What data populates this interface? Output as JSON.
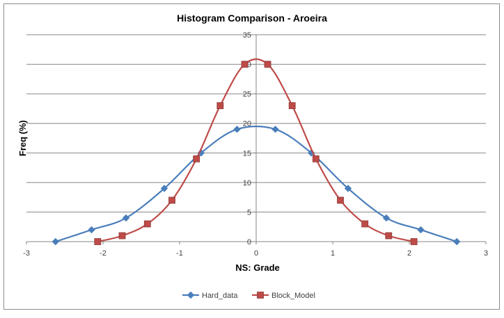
{
  "chart_data": {
    "type": "line",
    "title": "Histogram Comparison - Aroeira",
    "xlabel": "NS: Grade",
    "ylabel": "Freq (%)",
    "xlim": [
      -3,
      3
    ],
    "ylim": [
      0,
      35
    ],
    "x_ticks": [
      -3,
      -2,
      -1,
      0,
      1,
      2,
      3
    ],
    "y_ticks": [
      0,
      5,
      10,
      15,
      20,
      25,
      30,
      35
    ],
    "grid": "horizontal",
    "legend_position": "bottom",
    "series": [
      {
        "name": "Hard_data",
        "color": "#4a7ebb",
        "marker": "diamond",
        "x": [
          -2.62,
          -2.15,
          -1.7,
          -1.2,
          -0.72,
          -0.25,
          0.25,
          0.72,
          1.2,
          1.7,
          2.15,
          2.62
        ],
        "y": [
          0,
          2,
          4,
          9,
          15,
          19,
          19,
          15,
          9,
          4,
          2,
          0
        ]
      },
      {
        "name": "Block_Model",
        "color": "#be4b48",
        "marker": "square",
        "x": [
          -2.07,
          -1.75,
          -1.42,
          -1.1,
          -0.78,
          -0.47,
          -0.15,
          0.15,
          0.47,
          0.78,
          1.1,
          1.42,
          1.73,
          2.06
        ],
        "y": [
          0,
          1,
          3,
          7,
          14,
          23,
          30,
          30,
          23,
          14,
          7,
          3,
          1,
          0
        ]
      }
    ]
  }
}
